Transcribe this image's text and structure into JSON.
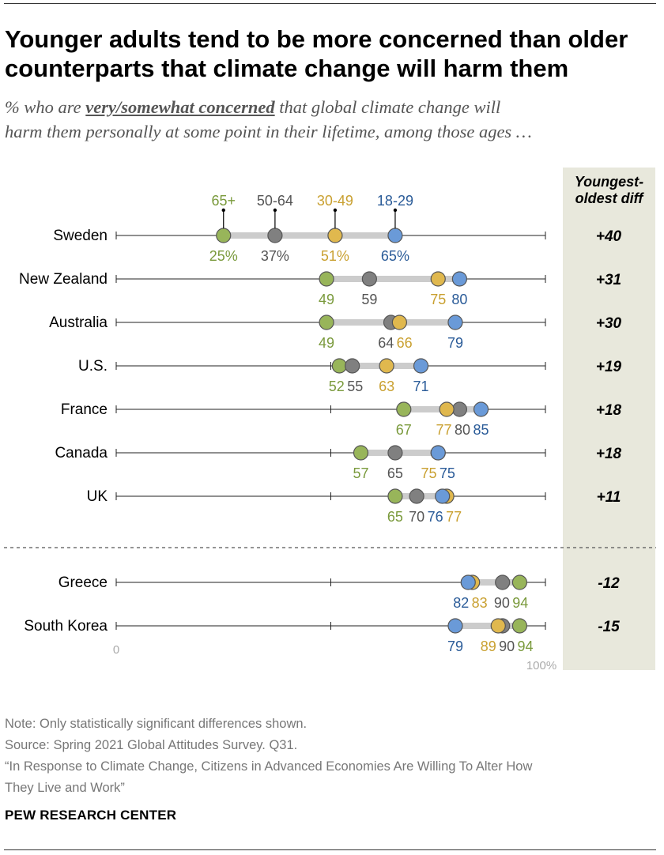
{
  "header": {
    "title_line1": "Younger adults tend to be more concerned than older",
    "title_line2": "counterparts that climate change will harm them",
    "subtitle_pre": "% who are ",
    "subtitle_emph": "very/somewhat concerned",
    "subtitle_post1": " that global climate change will",
    "subtitle_line2": "harm them personally at some point in their lifetime, among those ages …"
  },
  "diff_header_line1": "Youngest-",
  "diff_header_line2": "oldest diff",
  "colors": {
    "65+": "#98b55a",
    "50-64": "#808080",
    "30-49": "#e0b84e",
    "18-29": "#6a9ad8",
    "65+_text": "#7a9a3c",
    "50-64_text": "#555555",
    "30-49_text": "#c9a030",
    "18-29_text": "#2a5b98",
    "bar": "#cccccc",
    "panel": "#e8e8dc"
  },
  "chart_data": {
    "type": "dot",
    "title": "Younger adults tend to be more concerned than older counterparts that climate change will harm them",
    "x_range": [
      0,
      100
    ],
    "x_tick_labels": [
      "0",
      "100%"
    ],
    "series": [
      {
        "name": "65+"
      },
      {
        "name": "50-64"
      },
      {
        "name": "30-49"
      },
      {
        "name": "18-29"
      }
    ],
    "rows": [
      {
        "country": "Sweden",
        "values": {
          "65+": 25,
          "50-64": 37,
          "30-49": 51,
          "18-29": 65
        },
        "labels": [
          "25%",
          "37%",
          "51%",
          "65%"
        ],
        "diff": "+40"
      },
      {
        "country": "New Zealand",
        "values": {
          "65+": 49,
          "50-64": 59,
          "30-49": 75,
          "18-29": 80
        },
        "labels": [
          "49",
          "59",
          "75",
          "80"
        ],
        "diff": "+31"
      },
      {
        "country": "Australia",
        "values": {
          "65+": 49,
          "50-64": 64,
          "30-49": 66,
          "18-29": 79
        },
        "labels": [
          "49",
          "64",
          "66",
          "79"
        ],
        "diff": "+30"
      },
      {
        "country": "U.S.",
        "values": {
          "65+": 52,
          "50-64": 55,
          "30-49": 63,
          "18-29": 71
        },
        "labels": [
          "52",
          "55",
          "63",
          "71"
        ],
        "diff": "+19"
      },
      {
        "country": "France",
        "values": {
          "65+": 67,
          "50-64": 80,
          "30-49": 77,
          "18-29": 85
        },
        "labels": [
          "67",
          "80",
          "77",
          "85"
        ],
        "diff": "+18"
      },
      {
        "country": "Canada",
        "values": {
          "65+": 57,
          "50-64": 65,
          "30-49": 75,
          "18-29": 75
        },
        "labels": [
          "57",
          "65",
          "75",
          "75"
        ],
        "diff": "+18"
      },
      {
        "country": "UK",
        "values": {
          "65+": 65,
          "50-64": 70,
          "30-49": 77,
          "18-29": 76
        },
        "labels": [
          "65",
          "70",
          "77",
          "76"
        ],
        "diff": "+11"
      },
      {
        "country": "Greece",
        "values": {
          "65+": 94,
          "50-64": 90,
          "30-49": 83,
          "18-29": 82
        },
        "labels": [
          "94",
          "90",
          "83",
          "82"
        ],
        "diff": "-12"
      },
      {
        "country": "South Korea",
        "values": {
          "65+": 94,
          "50-64": 90,
          "30-49": 89,
          "18-29": 79
        },
        "labels": [
          "94",
          "90",
          "89",
          "79"
        ],
        "diff": "-15"
      }
    ]
  },
  "notes": {
    "note": "Note: Only statistically significant differences shown.",
    "source": "Source: Spring 2021 Global Attitudes Survey. Q31.",
    "report_line1": "“In Response to Climate Change, Citizens in Advanced Economies Are Willing To Alter How",
    "report_line2": "They Live and Work”"
  },
  "brand": "PEW RESEARCH CENTER"
}
